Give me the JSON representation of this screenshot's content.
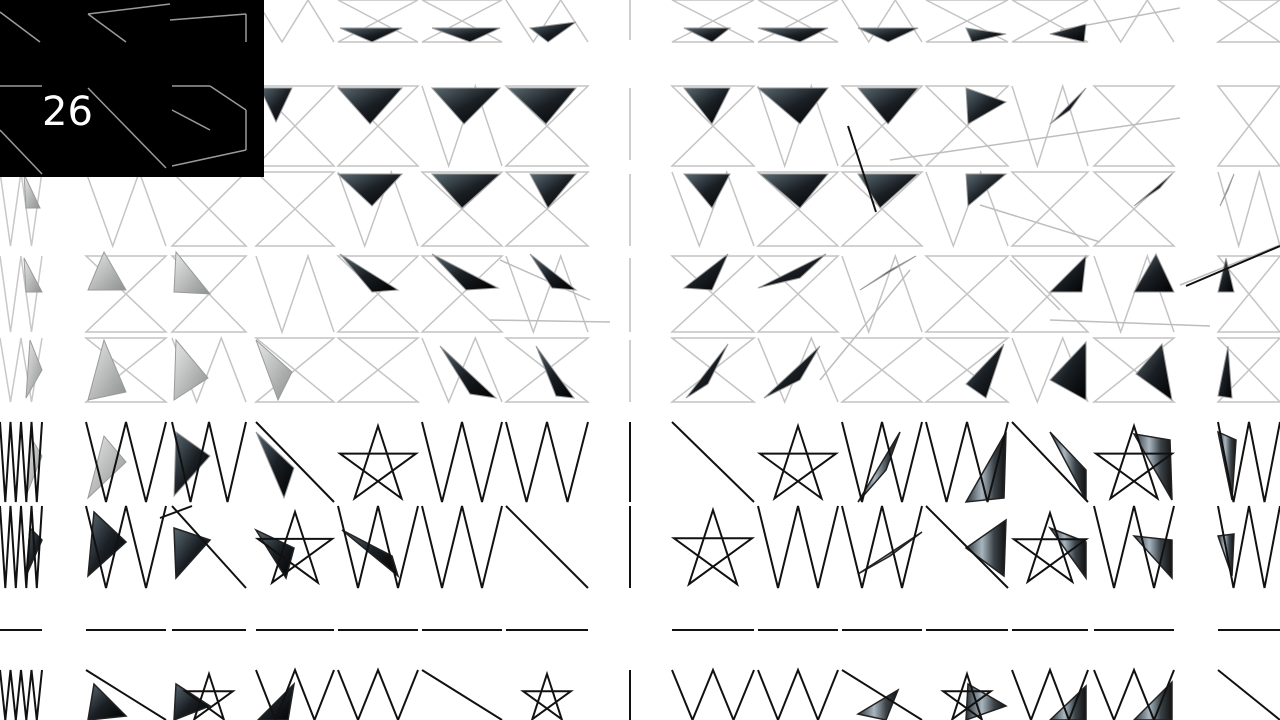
{
  "overlay": {
    "counter_label": "26"
  },
  "palette": {
    "background": "#ffffff",
    "counter_bg": "#000000",
    "counter_text": "#ffffff",
    "stroke_dark": "#111111",
    "stroke_faint": "#b8b8b8"
  }
}
